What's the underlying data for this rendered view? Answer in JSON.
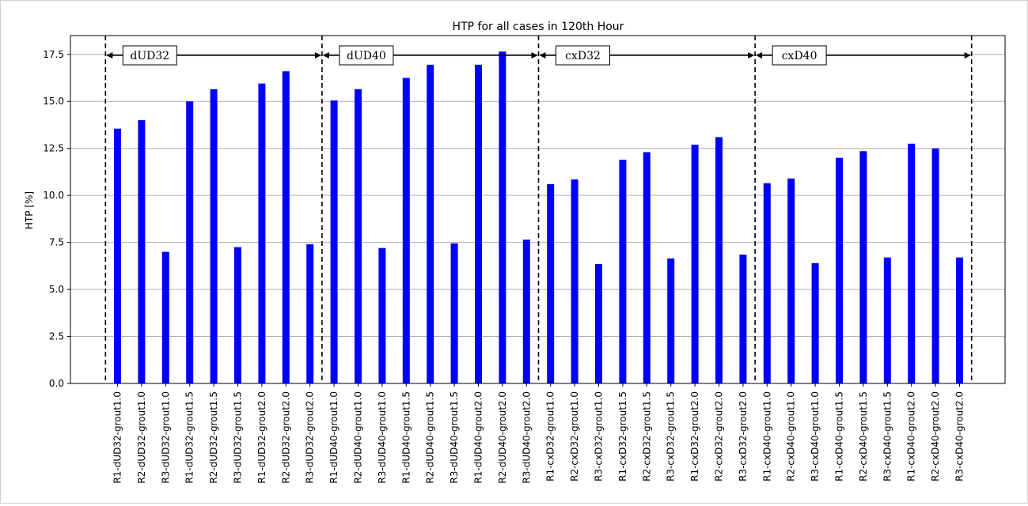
{
  "chart_data": {
    "type": "bar",
    "title": "HTP for all cases in 120th Hour",
    "xlabel": "",
    "ylabel": "HTP [%]",
    "ylim": [
      0,
      18.5
    ],
    "yticks": [
      0.0,
      2.5,
      5.0,
      7.5,
      10.0,
      12.5,
      15.0,
      17.5
    ],
    "ytick_labels": [
      "0.0",
      "2.5",
      "5.0",
      "7.5",
      "10.0",
      "12.5",
      "15.0",
      "17.5"
    ],
    "grid": "horizontal",
    "bar_color": "#0000ff",
    "categories": [
      "R1-dUD32-grout1.0",
      "R2-dUD32-grout1.0",
      "R3-dUD32-grout1.0",
      "R1-dUD32-grout1.5",
      "R2-dUD32-grout1.5",
      "R3-dUD32-grout1.5",
      "R1-dUD32-grout2.0",
      "R2-dUD32-grout2.0",
      "R3-dUD32-grout2.0",
      "R1-dUD40-grout1.0",
      "R2-dUD40-grout1.0",
      "R3-dUD40-grout1.0",
      "R1-dUD40-grout1.5",
      "R2-dUD40-grout1.5",
      "R3-dUD40-grout1.5",
      "R1-dUD40-grout2.0",
      "R2-dUD40-grout2.0",
      "R3-dUD40-grout2.0",
      "R1-cxD32-grout1.0",
      "R2-cxD32-grout1.0",
      "R3-cxD32-grout1.0",
      "R1-cxD32-grout1.5",
      "R2-cxD32-grout1.5",
      "R3-cxD32-grout1.5",
      "R1-cxD32-grout2.0",
      "R2-cxD32-grout2.0",
      "R3-cxD32-grout2.0",
      "R1-cxD40-grout1.0",
      "R2-cxD40-grout1.0",
      "R3-cxD40-grout1.0",
      "R1-cxD40-grout1.5",
      "R2-cxD40-grout1.5",
      "R3-cxD40-grout1.5",
      "R1-cxD40-grout2.0",
      "R2-cxD40-grout2.0",
      "R3-cxD40-grout2.0"
    ],
    "values": [
      13.55,
      14.0,
      7.0,
      15.0,
      15.65,
      7.25,
      15.95,
      16.6,
      7.4,
      15.05,
      15.65,
      7.2,
      16.25,
      16.95,
      7.45,
      16.95,
      17.65,
      7.65,
      10.6,
      10.85,
      6.35,
      11.9,
      12.3,
      6.65,
      12.7,
      13.1,
      6.85,
      10.65,
      10.9,
      6.4,
      12.0,
      12.35,
      6.7,
      12.75,
      12.5,
      6.7
    ],
    "groups": [
      {
        "label": "dUD32",
        "start": 0,
        "end": 9
      },
      {
        "label": "dUD40",
        "start": 9,
        "end": 18
      },
      {
        "label": "cxD32",
        "start": 18,
        "end": 27
      },
      {
        "label": "cxD40",
        "start": 27,
        "end": 36
      }
    ]
  }
}
